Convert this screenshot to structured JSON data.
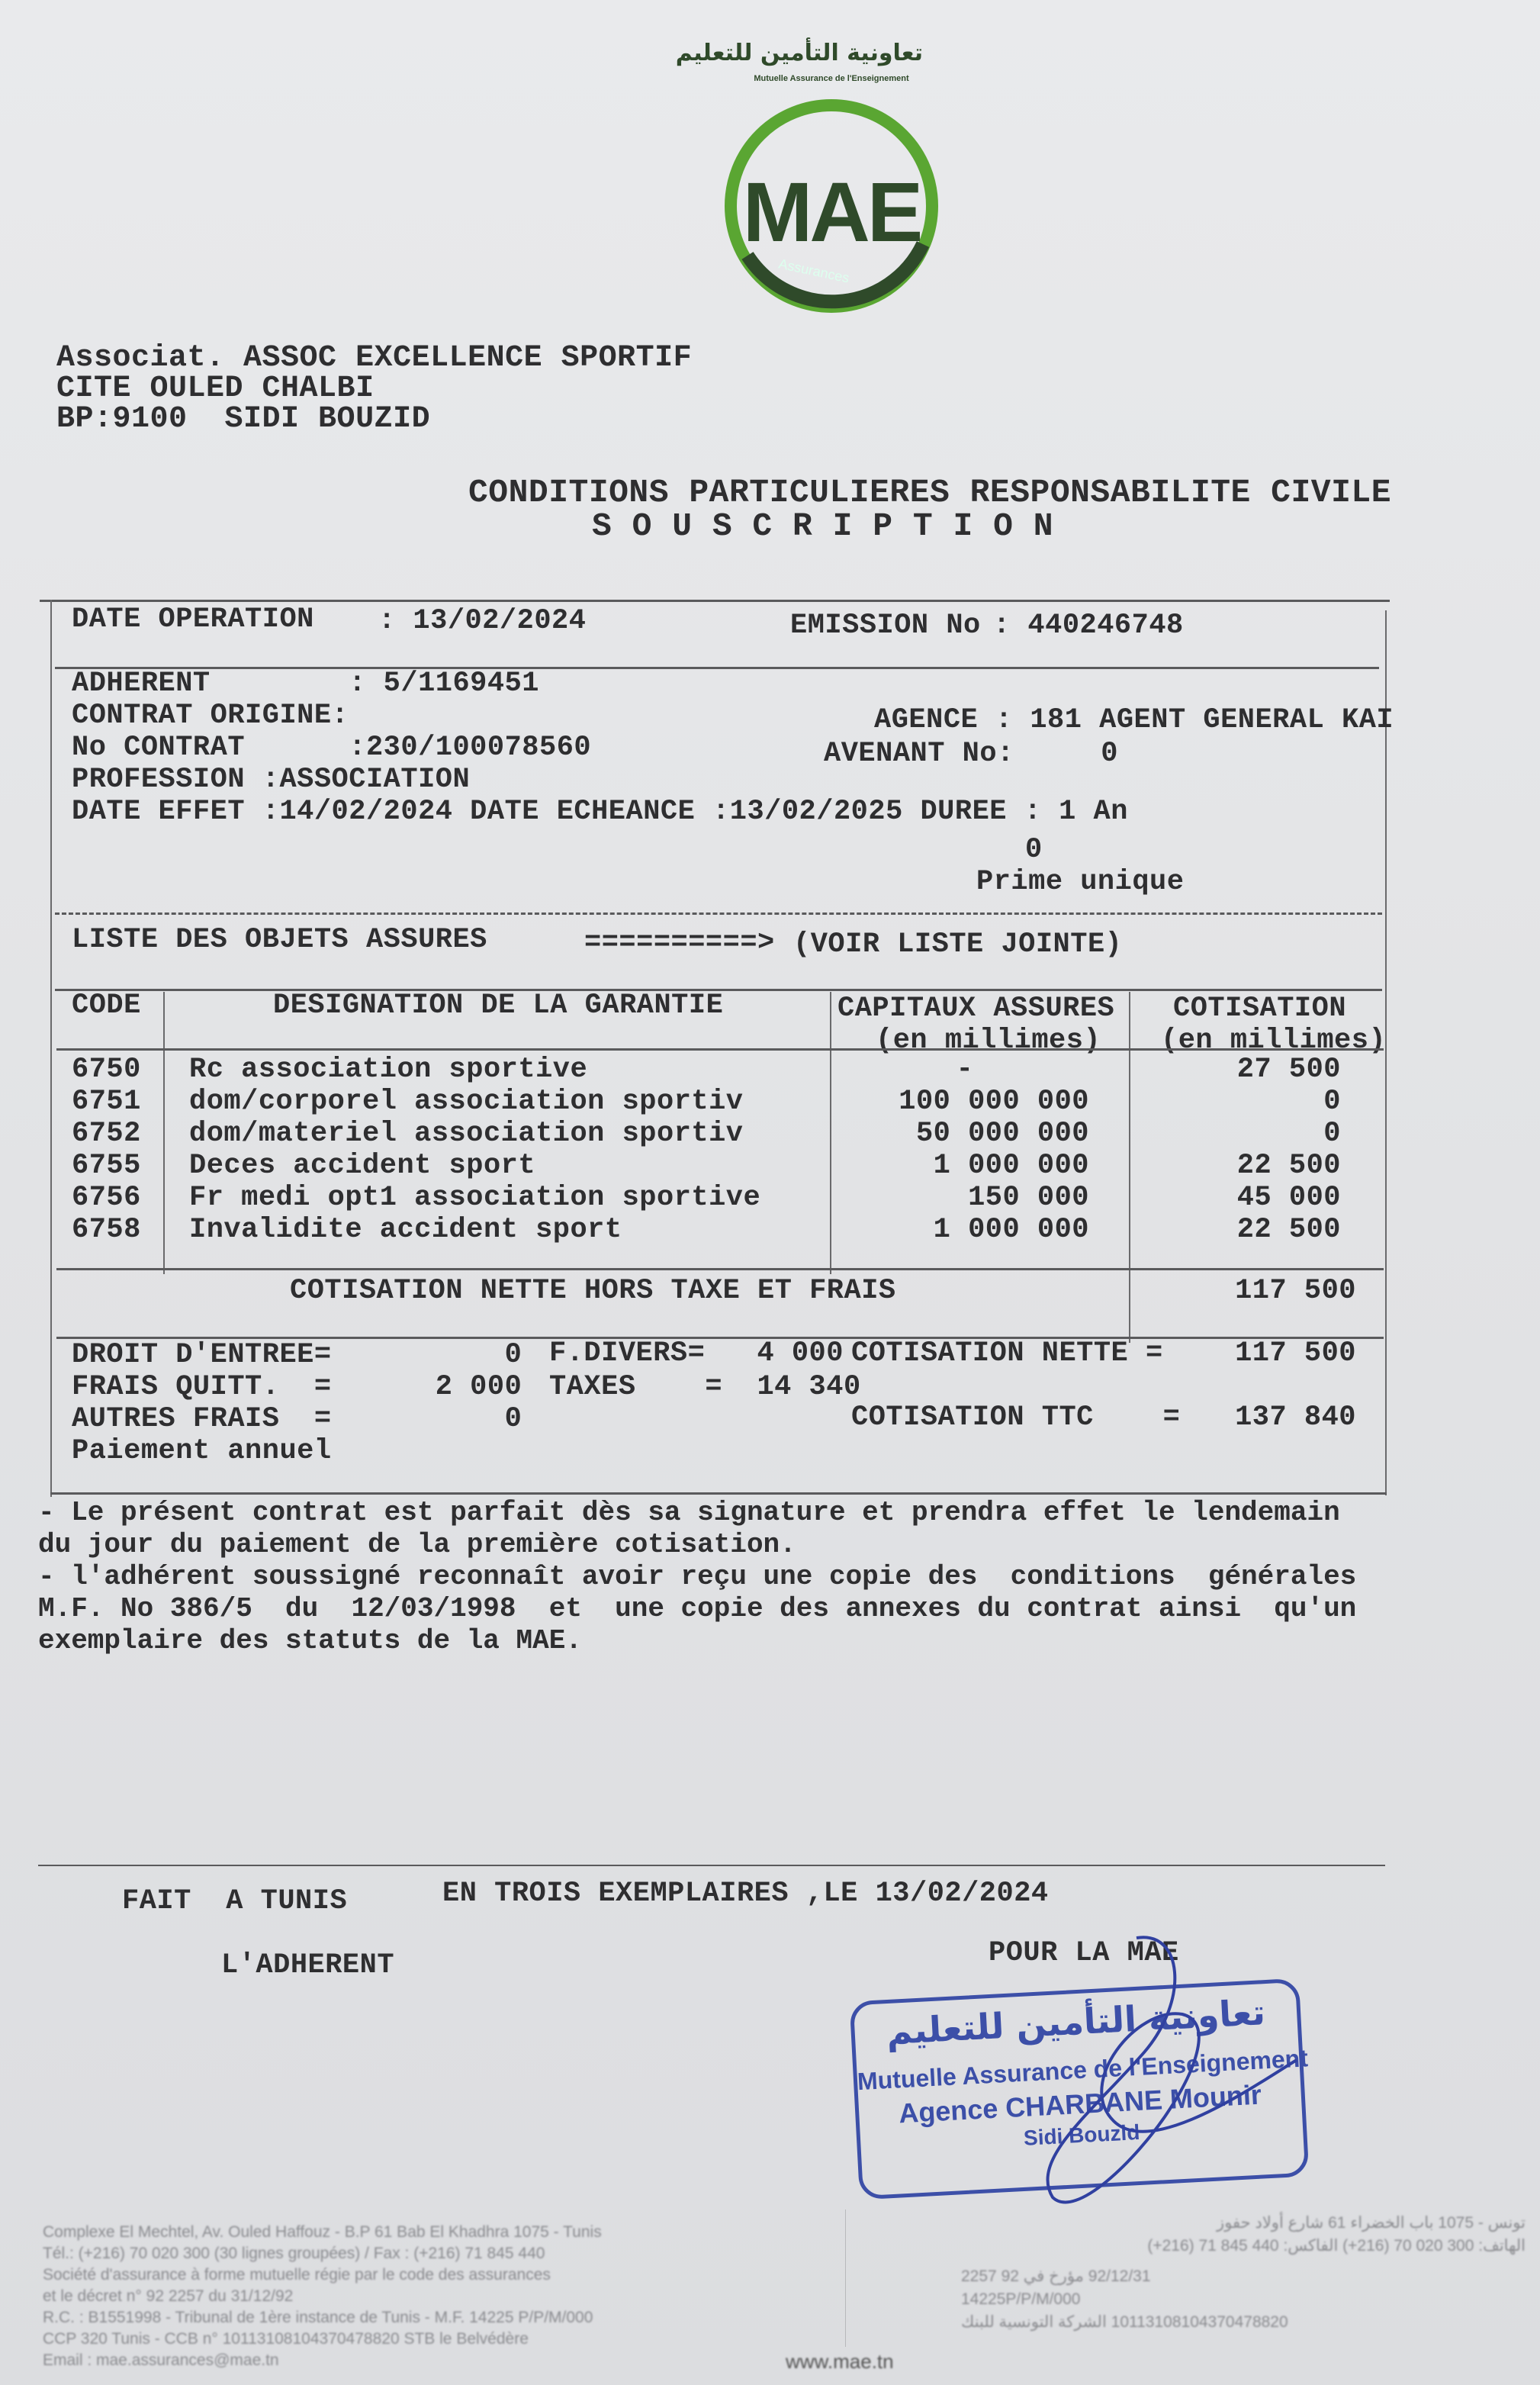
{
  "logo": {
    "arabic": "تعاونية التأمين للتعليم",
    "subtitle": "Mutuelle Assurance de l'Enseignement",
    "mark": "MAE",
    "ring_text": "Assurances",
    "brand_color": "#5aa632",
    "dark_color": "#2f4a2a"
  },
  "address": [
    "Associat. ASSOC EXCELLENCE SPORTIF",
    "CITE OULED CHALBI",
    "BP:9100  SIDI BOUZID"
  ],
  "title": "CONDITIONS PARTICULIERES RESPONSABILITE CIVILE",
  "subtitle": "S O U S C R I P T I O N",
  "header": {
    "date_operation_label": "DATE OPERATION",
    "date_operation": ": 13/02/2024",
    "emission_label": "EMISSION No",
    "emission": ": 440246748"
  },
  "contract": {
    "adherent": "ADHERENT        : 5/1169451",
    "contrat_origine": "CONTRAT ORIGINE:",
    "agence": "AGENCE : 181 AGENT GENERAL KAI",
    "no_contrat": "No CONTRAT      :230/100078560",
    "avenant": "AVENANT No:     0",
    "profession": "PROFESSION :ASSOCIATION",
    "dates": "DATE EFFET :14/02/2024 DATE ECHEANCE :13/02/2025 DUREE : 1 An",
    "zero": "0",
    "prime": "Prime unique"
  },
  "objects": {
    "label": "LISTE DES OBJETS ASSURES",
    "arrow": "==========>",
    "value": "(VOIR LISTE JOINTE)"
  },
  "table": {
    "headers": {
      "code": "CODE",
      "designation": "DESIGNATION DE LA GARANTIE",
      "capitaux": "CAPITAUX ASSURES",
      "capitaux_unit": "(en millimes)",
      "cotisation": "COTISATION",
      "cotisation_unit": "(en millimes)"
    },
    "rows": [
      {
        "code": "6750",
        "designation": "Rc association sportive",
        "capitaux": "-",
        "cotisation": "27 500"
      },
      {
        "code": "6751",
        "designation": "dom/corporel association sportiv",
        "capitaux": "100 000 000",
        "cotisation": "0"
      },
      {
        "code": "6752",
        "designation": "dom/materiel association sportiv",
        "capitaux": "50 000 000",
        "cotisation": "0"
      },
      {
        "code": "6755",
        "designation": "Deces accident sport",
        "capitaux": "1 000 000",
        "cotisation": "22 500"
      },
      {
        "code": "6756",
        "designation": "Fr medi opt1 association sportive",
        "capitaux": "150 000",
        "cotisation": "45 000"
      },
      {
        "code": "6758",
        "designation": "Invalidite accident sport",
        "capitaux": "1 000 000",
        "cotisation": "22 500"
      }
    ],
    "net_label": "COTISATION NETTE HORS TAXE ET FRAIS",
    "net_value": "117 500"
  },
  "fees": {
    "droit": "DROIT D'ENTREE=          0",
    "fdivers": "F.DIVERS=   4 000",
    "cot_nette_label": "COTISATION NETTE =",
    "cot_nette": "117 500",
    "frais": "FRAIS QUITT.  =      2 000",
    "taxes": "TAXES    =  14 340",
    "autres": "AUTRES FRAIS  =          0",
    "ttc_label": "COTISATION TTC    =",
    "ttc": "137 840",
    "paiement": "Paiement annuel"
  },
  "terms": [
    "- Le présent contrat est parfait dès sa signature et prendra effet le lendemain",
    "du jour du paiement de la première cotisation.",
    "- l'adhérent soussigné reconnaît avoir reçu une copie des  conditions  générales",
    "M.F. No 386/5  du  12/03/1998  et  une copie des annexes du contrat ainsi  qu'un",
    "exemplaire des statuts de la MAE."
  ],
  "signature": {
    "fait": "FAIT  A TUNIS",
    "exemplaires": "EN TROIS EXEMPLAIRES ,LE 13/02/2024",
    "adherent": "L'ADHERENT",
    "pour": "POUR LA MAE"
  },
  "stamp": {
    "arabic": "تعاونية التأمين للتعليم",
    "line1": "Mutuelle Assurance de l'Enseignement",
    "line2": "Agence CHARBANE Mounir",
    "line3": "Sidi Bouzid",
    "color": "#3c4fa8"
  },
  "footer": {
    "left": [
      "Complexe El Mechtel, Av. Ouled Haffouz - B.P 61 Bab El Khadhra 1075 - Tunis",
      "Tél.: (+216) 70 020 300 (30 lignes groupées) / Fax : (+216) 71 845 440",
      "Société d'assurance à forme mutuelle régie par le code des assurances",
      "et le décret n° 92 2257 du 31/12/92",
      "R.C. : B1551998 - Tribunal de 1ère instance de Tunis - M.F. 14225 P/P/M/000",
      "CCP 320 Tunis - CCB n° 10113108104370478820 STB le Belvédère",
      "Email : mae.assurances@mae.tn"
    ],
    "website": "www.mae.tn",
    "right": [
      "تونس - 1075 باب الخضراء 61 شارع أولاد حفوز",
      "الهاتف: 300 020 70 (216+) الفاكس: 440 845 71 (216+)",
      "92/12/31 مؤرخ في 92 2257",
      "14225P/P/M/000",
      "10113108104370478820 الشركة التونسية للبنك"
    ]
  }
}
